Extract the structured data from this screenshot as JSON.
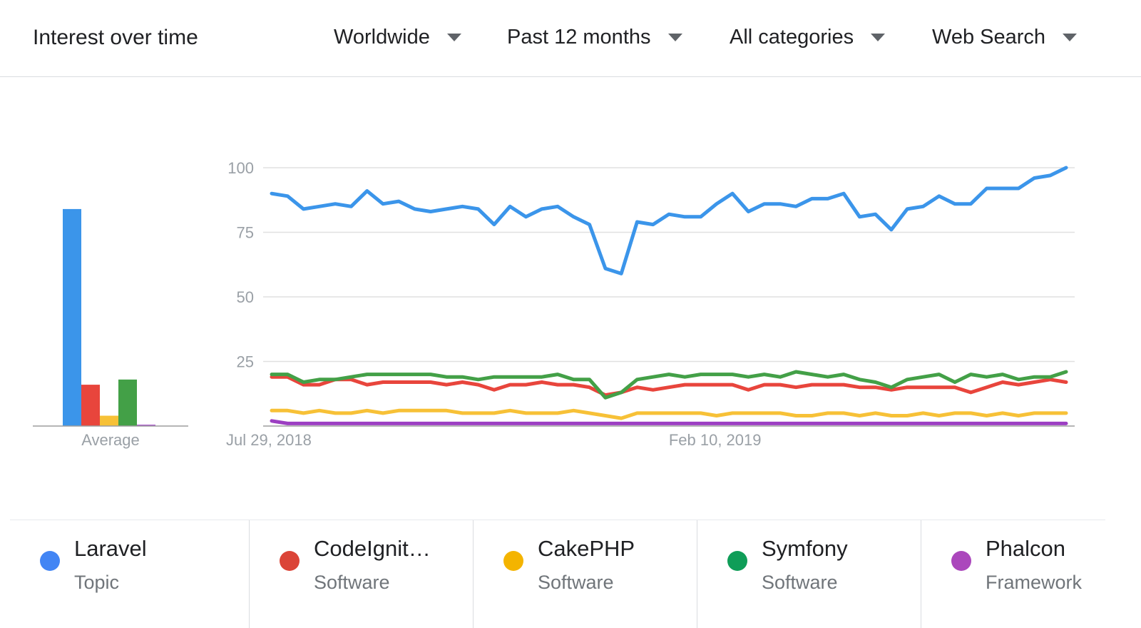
{
  "header": {
    "title": "Interest over time",
    "filters": {
      "geo": "Worldwide",
      "time": "Past 12 months",
      "category": "All categories",
      "property": "Web Search"
    }
  },
  "colors": {
    "laravel": "#3b95ea",
    "codeigniter": "#e8453c",
    "cakephp": "#f7c137",
    "symfony": "#43a047",
    "phalcon": "#9c3fc2",
    "gridline": "#e0e0e0",
    "axis": "#9e9e9e"
  },
  "legend": [
    {
      "term": "Laravel",
      "type": "Topic",
      "color": "#4285f4"
    },
    {
      "term": "CodeIgnit…",
      "type": "Software",
      "color": "#db4437"
    },
    {
      "term": "CakePHP",
      "type": "Software",
      "color": "#f4b400"
    },
    {
      "term": "Symfony",
      "type": "Software",
      "color": "#0f9d58"
    },
    {
      "term": "Phalcon",
      "type": "Framework",
      "color": "#ab47bc"
    }
  ],
  "chart_data": [
    {
      "type": "bar",
      "xlabel": "Average",
      "categories": [
        "Laravel",
        "CodeIgniter",
        "CakePHP",
        "Symfony",
        "Phalcon"
      ],
      "values": [
        84,
        16,
        4,
        18,
        0.5
      ],
      "ylim": [
        0,
        100
      ]
    },
    {
      "type": "line",
      "ylim": [
        0,
        100
      ],
      "yticks": [
        "100",
        "75",
        "50",
        "25"
      ],
      "xtick_labels": [
        "Jul 29, 2018",
        "Feb 10, 2019"
      ],
      "xtick_positions": [
        0,
        28
      ],
      "grid": true,
      "series": [
        {
          "name": "Laravel",
          "values": [
            90,
            89,
            84,
            85,
            86,
            85,
            91,
            86,
            87,
            84,
            83,
            84,
            85,
            84,
            78,
            85,
            81,
            84,
            85,
            81,
            78,
            61,
            59,
            79,
            78,
            82,
            81,
            81,
            86,
            90,
            83,
            86,
            86,
            85,
            88,
            88,
            90,
            81,
            82,
            76,
            84,
            85,
            89,
            86,
            86,
            92,
            92,
            92,
            96,
            97,
            100
          ]
        },
        {
          "name": "CodeIgniter",
          "values": [
            19,
            19,
            16,
            16,
            18,
            18,
            16,
            17,
            17,
            17,
            17,
            16,
            17,
            16,
            14,
            16,
            16,
            17,
            16,
            16,
            15,
            12,
            13,
            15,
            14,
            15,
            16,
            16,
            16,
            16,
            14,
            16,
            16,
            15,
            16,
            16,
            16,
            15,
            15,
            14,
            15,
            15,
            15,
            15,
            13,
            15,
            17,
            16,
            17,
            18,
            17
          ]
        },
        {
          "name": "CakePHP",
          "values": [
            6,
            6,
            5,
            6,
            5,
            5,
            6,
            5,
            6,
            6,
            6,
            6,
            5,
            5,
            5,
            6,
            5,
            5,
            5,
            6,
            5,
            4,
            3,
            5,
            5,
            5,
            5,
            5,
            4,
            5,
            5,
            5,
            5,
            4,
            4,
            5,
            5,
            4,
            5,
            4,
            4,
            5,
            4,
            5,
            5,
            4,
            5,
            4,
            5,
            5,
            5
          ]
        },
        {
          "name": "Symfony",
          "values": [
            20,
            20,
            17,
            18,
            18,
            19,
            20,
            20,
            20,
            20,
            20,
            19,
            19,
            18,
            19,
            19,
            19,
            19,
            20,
            18,
            18,
            11,
            13,
            18,
            19,
            20,
            19,
            20,
            20,
            20,
            19,
            20,
            19,
            21,
            20,
            19,
            20,
            18,
            17,
            15,
            18,
            19,
            20,
            17,
            20,
            19,
            20,
            18,
            19,
            19,
            21
          ]
        },
        {
          "name": "Phalcon",
          "values": [
            2,
            1,
            1,
            1,
            1,
            1,
            1,
            1,
            1,
            1,
            1,
            1,
            1,
            1,
            1,
            1,
            1,
            1,
            1,
            1,
            1,
            1,
            1,
            1,
            1,
            1,
            1,
            1,
            1,
            1,
            1,
            1,
            1,
            1,
            1,
            1,
            1,
            1,
            1,
            1,
            1,
            1,
            1,
            1,
            1,
            1,
            1,
            1,
            1,
            1,
            1
          ]
        }
      ]
    }
  ]
}
